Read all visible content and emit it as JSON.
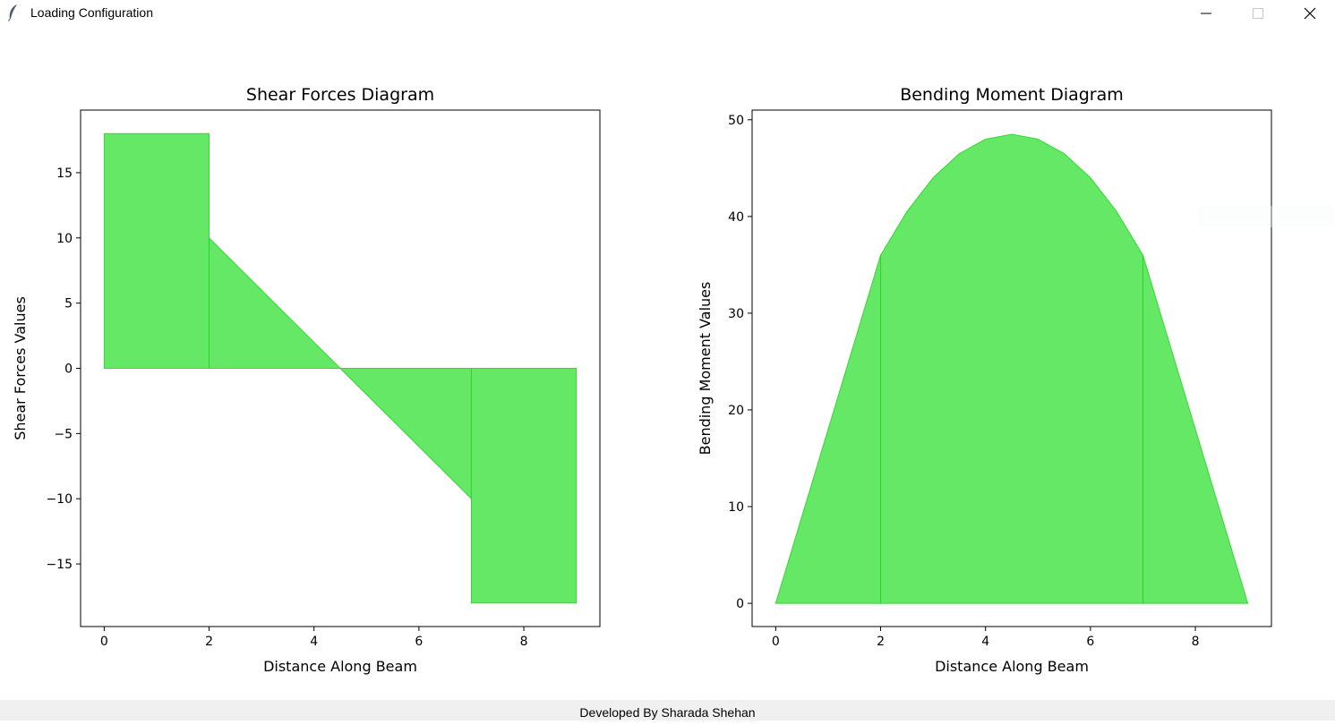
{
  "window": {
    "title": "Loading Configuration",
    "controls": {
      "minimize": "minimize-icon",
      "maximize": "maximize-icon",
      "close": "close-icon"
    }
  },
  "footer": {
    "text": "Developed By Sharada Shehan"
  },
  "colors": {
    "fill": "#65e865",
    "edge": "#2ad42a",
    "axis": "#000000"
  },
  "chart_data": [
    {
      "id": "shear",
      "type": "area",
      "title": "Shear Forces Diagram",
      "xlabel": "Distance Along Beam",
      "ylabel": "Shear Forces Values",
      "xlim": [
        -0.45,
        9.45
      ],
      "ylim": [
        -19.8,
        19.8
      ],
      "xticks": [
        0,
        2,
        4,
        6,
        8
      ],
      "yticks": [
        15,
        10,
        5,
        0,
        -5,
        -10,
        -15
      ],
      "ytick_labels": [
        "15",
        "10",
        "5",
        "0",
        "−5",
        "−10",
        "−15"
      ],
      "grid": false,
      "segments": [
        {
          "x": [
            0,
            2
          ],
          "y": [
            18,
            18
          ]
        },
        {
          "x": [
            2,
            4.5,
            7
          ],
          "y": [
            10,
            0,
            -10
          ]
        },
        {
          "x": [
            7,
            9
          ],
          "y": [
            -18,
            -18
          ]
        }
      ]
    },
    {
      "id": "moment",
      "type": "area",
      "title": "Bending Moment Diagram",
      "xlabel": "Distance Along Beam",
      "ylabel": "Bending Moment Values",
      "xlim": [
        -0.45,
        9.45
      ],
      "ylim": [
        -2.4,
        51
      ],
      "xticks": [
        0,
        2,
        4,
        6,
        8
      ],
      "yticks": [
        0,
        10,
        20,
        30,
        40,
        50
      ],
      "ytick_labels": [
        "0",
        "10",
        "20",
        "30",
        "40",
        "50"
      ],
      "grid": false,
      "segments": [
        {
          "x": [
            0,
            2
          ],
          "y": [
            0,
            36
          ]
        },
        {
          "x": [
            2,
            2.5,
            3,
            3.5,
            4,
            4.5,
            5,
            5.5,
            6,
            6.5,
            7
          ],
          "y": [
            36,
            40.5,
            44,
            46.5,
            48,
            48.5,
            48,
            46.5,
            44,
            40.5,
            36
          ]
        },
        {
          "x": [
            7,
            9
          ],
          "y": [
            36,
            0
          ]
        }
      ]
    }
  ]
}
